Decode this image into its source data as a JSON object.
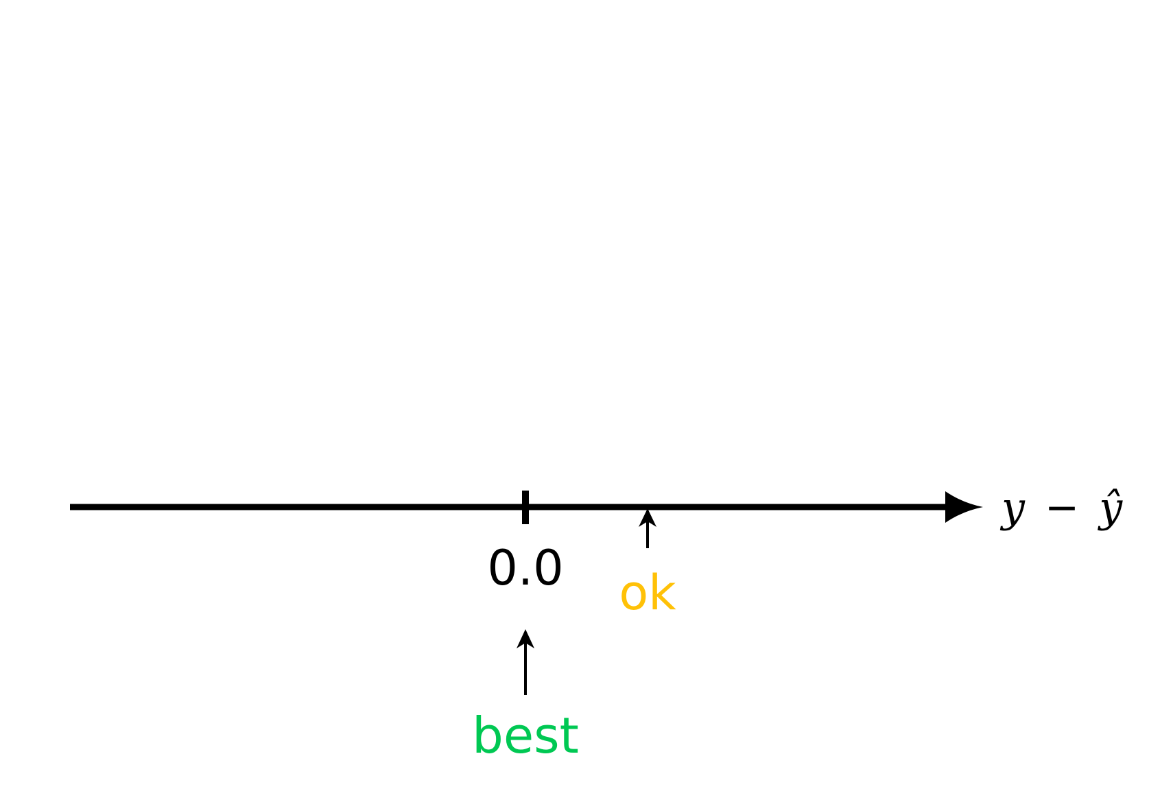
{
  "axis": {
    "label_y": "y",
    "label_minus": "−",
    "label_yhat": "ŷ"
  },
  "tick": {
    "label": "0.0"
  },
  "markers": {
    "best": {
      "label": "best",
      "color": "#00c853"
    },
    "ok": {
      "label": "ok",
      "color": "#ffc107"
    }
  },
  "colors": {
    "axis": "#000000",
    "text": "#000000"
  }
}
